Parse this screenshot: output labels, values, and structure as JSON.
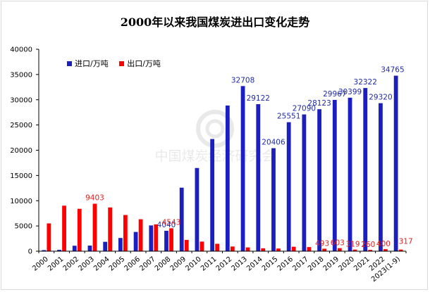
{
  "chart_data": {
    "type": "bar",
    "title": "2000年以来我国煤炭进出口变化走势",
    "xlabel": "",
    "ylabel": "",
    "ylim": [
      0,
      40000
    ],
    "yticks": [
      0,
      5000,
      10000,
      15000,
      20000,
      25000,
      30000,
      35000,
      40000
    ],
    "categories": [
      "2000",
      "2001",
      "2002",
      "2003",
      "2004",
      "2005",
      "2006",
      "2007",
      "2008",
      "2009",
      "2010",
      "2011",
      "2012",
      "2013",
      "2014",
      "2015",
      "2016",
      "2017",
      "2018",
      "2019",
      "2020",
      "2021",
      "2022",
      "2023(1-9)"
    ],
    "series": [
      {
        "name": "进口/万吨",
        "color": "#1c1fbf",
        "values": [
          212,
          266,
          1081,
          1110,
          1861,
          2617,
          3811,
          5102,
          4040,
          12583,
          16478,
          22220,
          28851,
          32708,
          29122,
          20406,
          25551,
          27090,
          28123,
          29967,
          30399,
          32322,
          29320,
          34765
        ],
        "labeled_indices": [
          8,
          13,
          14,
          15,
          16,
          17,
          18,
          19,
          20,
          21,
          22,
          23
        ]
      },
      {
        "name": "出口/万吨",
        "color": "#ff0000",
        "values": [
          5505,
          9013,
          8390,
          9403,
          8666,
          7172,
          6327,
          5317,
          4543,
          2240,
          1903,
          1466,
          928,
          751,
          574,
          533,
          878,
          817,
          493,
          603,
          319,
          260,
          400,
          317
        ],
        "labeled_indices": [
          3,
          8,
          18,
          19,
          20,
          21,
          22,
          23
        ]
      }
    ],
    "legend_position": "top-left",
    "watermark": "中国煤炭经济研究会"
  }
}
